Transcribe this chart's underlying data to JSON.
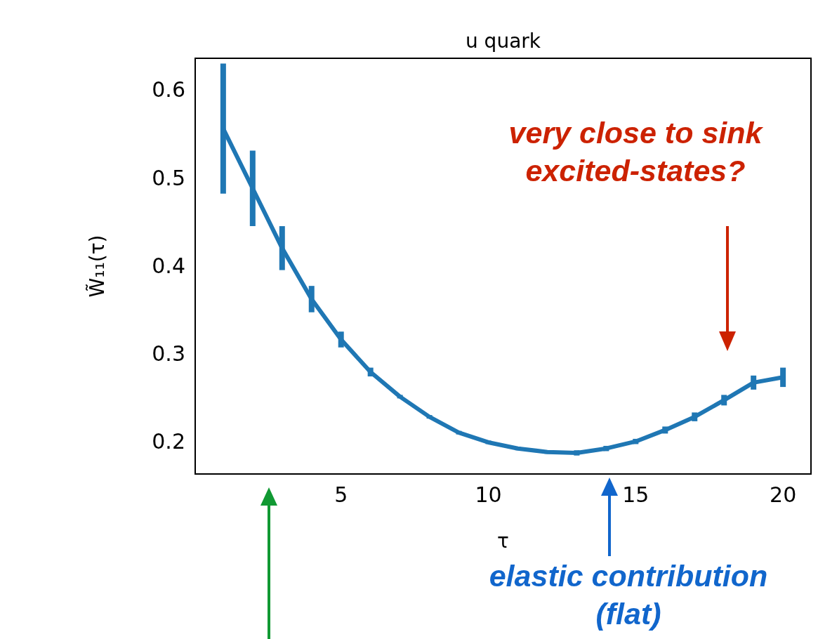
{
  "chart_data": {
    "type": "line",
    "title": "u quark",
    "xlabel": "τ",
    "ylabel": "W̃₁₁(τ)",
    "x": [
      1,
      2,
      3,
      4,
      5,
      6,
      7,
      8,
      9,
      10,
      11,
      12,
      13,
      14,
      15,
      16,
      17,
      18,
      19,
      20
    ],
    "series": [
      {
        "color": "#1f77b4",
        "values": [
          0.558,
          0.49,
          0.422,
          0.364,
          0.318,
          0.281,
          0.253,
          0.23,
          0.212,
          0.201,
          0.194,
          0.19,
          0.189,
          0.194,
          0.202,
          0.215,
          0.23,
          0.249,
          0.269,
          0.275
        ],
        "errors": [
          0.074,
          0.043,
          0.025,
          0.015,
          0.009,
          0.005,
          0.002,
          0.002,
          0.002,
          0.002,
          0.002,
          0.002,
          0.003,
          0.003,
          0.003,
          0.004,
          0.005,
          0.006,
          0.008,
          0.011
        ]
      }
    ],
    "xlim": [
      0.05,
      20.95
    ],
    "ylim": [
      0.165,
      0.638
    ],
    "xticks": [
      5,
      10,
      15,
      20
    ],
    "yticks": [
      0.2,
      0.3,
      0.4,
      0.5,
      0.6
    ],
    "grid": false,
    "legend": false,
    "marker": "none",
    "line_style": "solid",
    "annotations": [
      "very close to sink excited-states?",
      "elastic contribution (flat)"
    ]
  }
}
